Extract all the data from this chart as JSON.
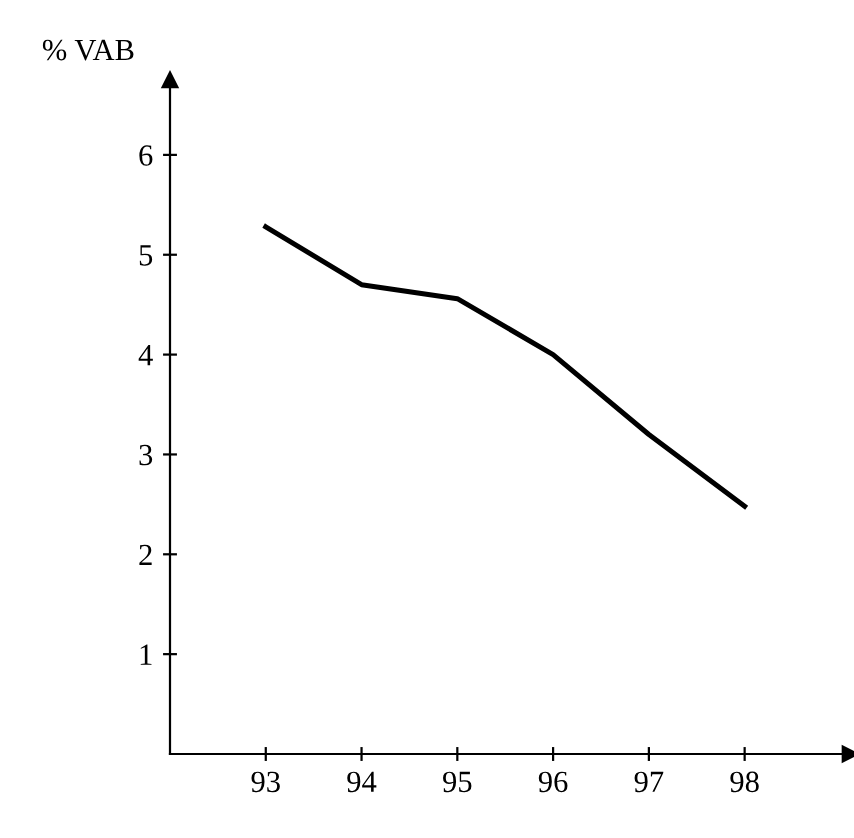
{
  "chart_data": {
    "type": "line",
    "ylabel": "% VAB",
    "x": [
      93,
      94,
      95,
      96,
      97,
      98
    ],
    "series": [
      {
        "color": "#000000",
        "values": [
          5.28,
          4.7,
          4.56,
          4.0,
          3.2,
          2.48
        ]
      }
    ],
    "xlim": [
      92,
      99.1
    ],
    "xticks": [
      93,
      94,
      95,
      96,
      97,
      98
    ],
    "ylim": [
      0,
      6.75
    ],
    "yticks": [
      1,
      2,
      3,
      4,
      5,
      6
    ],
    "grid": false,
    "legend": false,
    "marker": "none",
    "line_style": "solid"
  }
}
